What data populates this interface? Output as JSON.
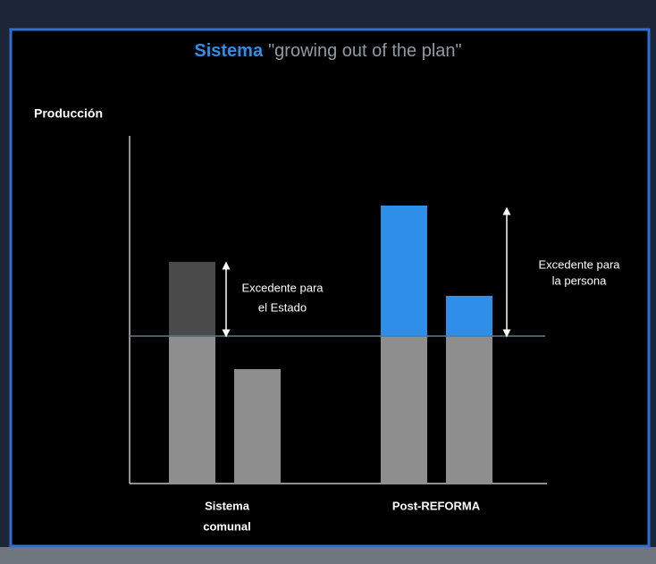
{
  "title": {
    "emphasis": "Sistema",
    "rest": "\"growing out of the plan\""
  },
  "y_axis_label": "Producción",
  "annotations": [
    {
      "lines": [
        "Excedente para",
        "el Estado"
      ]
    },
    {
      "lines": [
        "Excedente para",
        "la persona"
      ]
    }
  ],
  "categories": [
    {
      "lines": [
        "Sistema",
        "comunal"
      ]
    },
    {
      "lines": [
        "Post-REFORMA"
      ]
    }
  ]
}
